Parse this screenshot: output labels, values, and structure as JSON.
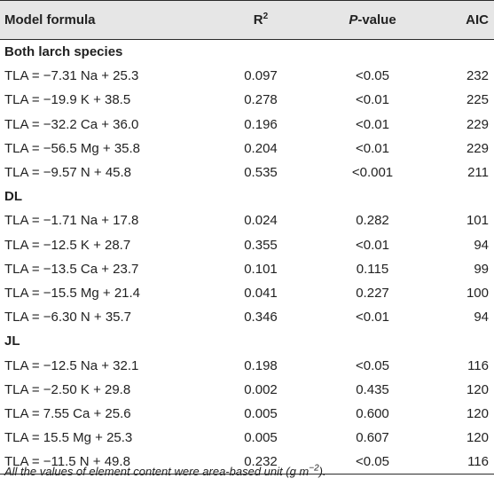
{
  "table": {
    "headers": {
      "model_formula": "Model formula",
      "r2_base": "R",
      "r2_sup": "2",
      "p_italic": "P",
      "p_rest": "-value",
      "aic": "AIC"
    },
    "groups": [
      {
        "title": "Both larch species",
        "rows": [
          {
            "formula": "TLA = −7.31 Na + 25.3",
            "r2": "0.097",
            "p": "<0.05",
            "aic": "232"
          },
          {
            "formula": "TLA = −19.9 K + 38.5",
            "r2": "0.278",
            "p": "<0.01",
            "aic": "225"
          },
          {
            "formula": "TLA = −32.2 Ca + 36.0",
            "r2": "0.196",
            "p": "<0.01",
            "aic": "229"
          },
          {
            "formula": "TLA = −56.5 Mg + 35.8",
            "r2": "0.204",
            "p": "<0.01",
            "aic": "229"
          },
          {
            "formula": "TLA = −9.57 N + 45.8",
            "r2": "0.535",
            "p": "<0.001",
            "aic": "211"
          }
        ]
      },
      {
        "title": "DL",
        "rows": [
          {
            "formula": "TLA = −1.71 Na + 17.8",
            "r2": "0.024",
            "p": "0.282",
            "aic": "101"
          },
          {
            "formula": "TLA = −12.5 K + 28.7",
            "r2": "0.355",
            "p": "<0.01",
            "aic": "94"
          },
          {
            "formula": "TLA = −13.5 Ca + 23.7",
            "r2": "0.101",
            "p": "0.115",
            "aic": "99"
          },
          {
            "formula": "TLA = −15.5 Mg + 21.4",
            "r2": "0.041",
            "p": "0.227",
            "aic": "100"
          },
          {
            "formula": "TLA = −6.30 N + 35.7",
            "r2": "0.346",
            "p": "<0.01",
            "aic": "94"
          }
        ]
      },
      {
        "title": "JL",
        "rows": [
          {
            "formula": "TLA = −12.5 Na + 32.1",
            "r2": "0.198",
            "p": "<0.05",
            "aic": "116"
          },
          {
            "formula": "TLA = −2.50 K + 29.8",
            "r2": "0.002",
            "p": "0.435",
            "aic": "120"
          },
          {
            "formula": "TLA = 7.55 Ca + 25.6",
            "r2": "0.005",
            "p": "0.600",
            "aic": "120"
          },
          {
            "formula": "TLA = 15.5 Mg + 25.3",
            "r2": "0.005",
            "p": "0.607",
            "aic": "120"
          },
          {
            "formula": "TLA = −11.5 N + 49.8",
            "r2": "0.232",
            "p": "<0.05",
            "aic": "116"
          }
        ]
      }
    ]
  },
  "footnote": {
    "text": "All the values of element content were area-based unit (g m",
    "sup": "−2",
    "tail": ")."
  },
  "colors": {
    "header_bg": "#e6e6e6",
    "text": "#222222",
    "rule": "#2b2b2b"
  }
}
